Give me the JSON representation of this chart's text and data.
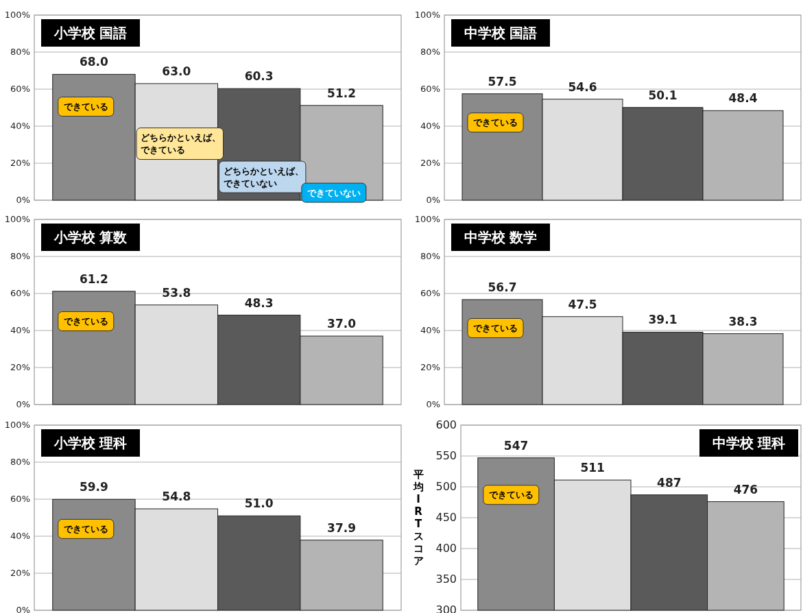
{
  "chart_data": [
    {
      "type": "bar",
      "title": "小学校 国語",
      "categories": [
        "できている",
        "どちらかといえば、できている",
        "どちらかといえば、できていない",
        "できていない"
      ],
      "values": [
        68.0,
        63.0,
        60.3,
        51.2
      ],
      "value_labels": [
        "68.0",
        "63.0",
        "60.3",
        "51.2"
      ],
      "colors": [
        "#8a8a8a",
        "#dedede",
        "#5a5a5a",
        "#b4b4b4"
      ],
      "ylim": [
        0,
        100
      ],
      "yticks": [
        {
          "value": 0,
          "label": "0%"
        },
        {
          "value": 20,
          "label": "20%"
        },
        {
          "value": 40,
          "label": "40%"
        },
        {
          "value": 60,
          "label": "60%"
        },
        {
          "value": 80,
          "label": "80%"
        },
        {
          "value": 100,
          "label": "100%"
        }
      ],
      "grid": "y"
    },
    {
      "type": "bar",
      "title": "中学校 国語",
      "categories": [
        "できている",
        null,
        null,
        null
      ],
      "values": [
        57.5,
        54.6,
        50.1,
        48.4
      ],
      "value_labels": [
        "57.5",
        "54.6",
        "50.1",
        "48.4"
      ],
      "colors": [
        "#8a8a8a",
        "#dedede",
        "#5a5a5a",
        "#b4b4b4"
      ],
      "ylim": [
        0,
        100
      ],
      "yticks": [
        {
          "value": 0,
          "label": "0%"
        },
        {
          "value": 20,
          "label": "20%"
        },
        {
          "value": 40,
          "label": "40%"
        },
        {
          "value": 60,
          "label": "60%"
        },
        {
          "value": 80,
          "label": "80%"
        },
        {
          "value": 100,
          "label": "100%"
        }
      ],
      "grid": "y"
    },
    {
      "type": "bar",
      "title": "小学校 算数",
      "categories": [
        "できている",
        null,
        null,
        null
      ],
      "values": [
        61.2,
        53.8,
        48.3,
        37.0
      ],
      "value_labels": [
        "61.2",
        "53.8",
        "48.3",
        "37.0"
      ],
      "colors": [
        "#8a8a8a",
        "#dedede",
        "#5a5a5a",
        "#b4b4b4"
      ],
      "ylim": [
        0,
        100
      ],
      "yticks": [
        {
          "value": 0,
          "label": "0%"
        },
        {
          "value": 20,
          "label": "20%"
        },
        {
          "value": 40,
          "label": "40%"
        },
        {
          "value": 60,
          "label": "60%"
        },
        {
          "value": 80,
          "label": "80%"
        },
        {
          "value": 100,
          "label": "100%"
        }
      ],
      "grid": "y"
    },
    {
      "type": "bar",
      "title": "中学校 数学",
      "categories": [
        "できている",
        null,
        null,
        null
      ],
      "values": [
        56.7,
        47.5,
        39.1,
        38.3
      ],
      "value_labels": [
        "56.7",
        "47.5",
        "39.1",
        "38.3"
      ],
      "colors": [
        "#8a8a8a",
        "#dedede",
        "#5a5a5a",
        "#b4b4b4"
      ],
      "ylim": [
        0,
        100
      ],
      "yticks": [
        {
          "value": 0,
          "label": "0%"
        },
        {
          "value": 20,
          "label": "20%"
        },
        {
          "value": 40,
          "label": "40%"
        },
        {
          "value": 60,
          "label": "60%"
        },
        {
          "value": 80,
          "label": "80%"
        },
        {
          "value": 100,
          "label": "100%"
        }
      ],
      "grid": "y"
    },
    {
      "type": "bar",
      "title": "小学校 理科",
      "categories": [
        "できている",
        null,
        null,
        null
      ],
      "values": [
        59.9,
        54.8,
        51.0,
        37.9
      ],
      "value_labels": [
        "59.9",
        "54.8",
        "51.0",
        "37.9"
      ],
      "colors": [
        "#8a8a8a",
        "#dedede",
        "#5a5a5a",
        "#b4b4b4"
      ],
      "ylim": [
        0,
        100
      ],
      "yticks": [
        {
          "value": 0,
          "label": "0%"
        },
        {
          "value": 20,
          "label": "20%"
        },
        {
          "value": 40,
          "label": "40%"
        },
        {
          "value": 60,
          "label": "60%"
        },
        {
          "value": 80,
          "label": "80%"
        },
        {
          "value": 100,
          "label": "100%"
        }
      ],
      "grid": "y"
    },
    {
      "type": "bar",
      "title": "中学校 理科",
      "ylabel": "平均IRTスコア",
      "categories": [
        "できている",
        null,
        null,
        null
      ],
      "values": [
        547,
        511,
        487,
        476
      ],
      "value_labels": [
        "547",
        "511",
        "487",
        "476"
      ],
      "colors": [
        "#8a8a8a",
        "#dedede",
        "#5a5a5a",
        "#b4b4b4"
      ],
      "ylim": [
        300,
        600
      ],
      "yticks": [
        300,
        350,
        400,
        450,
        500,
        550,
        600
      ],
      "grid": "y"
    }
  ]
}
